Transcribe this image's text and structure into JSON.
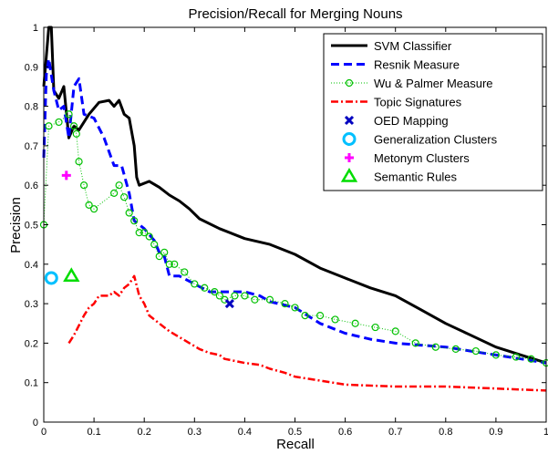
{
  "chart_data": {
    "type": "line",
    "title": "Precision/Recall for Merging Nouns",
    "xlabel": "Recall",
    "ylabel": "Precision",
    "xlim": [
      0,
      1
    ],
    "ylim": [
      0,
      1
    ],
    "xticks": [
      "0",
      "0.1",
      "0.2",
      "0.3",
      "0.4",
      "0.5",
      "0.6",
      "0.7",
      "0.8",
      "0.9",
      "1"
    ],
    "yticks": [
      "0",
      "0.1",
      "0.2",
      "0.3",
      "0.4",
      "0.5",
      "0.6",
      "0.7",
      "0.8",
      "0.9",
      "1"
    ],
    "grid": false,
    "legend_position": "top-right",
    "series": [
      {
        "name": "SVM Classifier",
        "style": "line-solid",
        "color": "#000000",
        "points": [
          [
            0.0,
            0.85
          ],
          [
            0.01,
            1.0
          ],
          [
            0.015,
            1.0
          ],
          [
            0.02,
            0.84
          ],
          [
            0.03,
            0.82
          ],
          [
            0.04,
            0.85
          ],
          [
            0.05,
            0.72
          ],
          [
            0.06,
            0.75
          ],
          [
            0.07,
            0.74
          ],
          [
            0.09,
            0.78
          ],
          [
            0.11,
            0.81
          ],
          [
            0.13,
            0.815
          ],
          [
            0.14,
            0.8
          ],
          [
            0.15,
            0.815
          ],
          [
            0.16,
            0.78
          ],
          [
            0.17,
            0.77
          ],
          [
            0.18,
            0.7
          ],
          [
            0.185,
            0.62
          ],
          [
            0.19,
            0.6
          ],
          [
            0.21,
            0.61
          ],
          [
            0.23,
            0.595
          ],
          [
            0.25,
            0.575
          ],
          [
            0.27,
            0.56
          ],
          [
            0.29,
            0.54
          ],
          [
            0.31,
            0.515
          ],
          [
            0.35,
            0.49
          ],
          [
            0.4,
            0.465
          ],
          [
            0.45,
            0.45
          ],
          [
            0.5,
            0.425
          ],
          [
            0.55,
            0.39
          ],
          [
            0.6,
            0.365
          ],
          [
            0.65,
            0.34
          ],
          [
            0.7,
            0.32
          ],
          [
            0.75,
            0.285
          ],
          [
            0.8,
            0.25
          ],
          [
            0.85,
            0.22
          ],
          [
            0.9,
            0.19
          ],
          [
            0.95,
            0.17
          ],
          [
            1.0,
            0.15
          ]
        ]
      },
      {
        "name": "Resnik Measure",
        "style": "line-dashed",
        "color": "#0000ff",
        "points": [
          [
            0.0,
            0.67
          ],
          [
            0.005,
            0.88
          ],
          [
            0.01,
            0.92
          ],
          [
            0.02,
            0.84
          ],
          [
            0.03,
            0.79
          ],
          [
            0.04,
            0.8
          ],
          [
            0.05,
            0.72
          ],
          [
            0.06,
            0.85
          ],
          [
            0.07,
            0.87
          ],
          [
            0.08,
            0.78
          ],
          [
            0.1,
            0.77
          ],
          [
            0.12,
            0.72
          ],
          [
            0.14,
            0.65
          ],
          [
            0.155,
            0.65
          ],
          [
            0.17,
            0.58
          ],
          [
            0.18,
            0.51
          ],
          [
            0.2,
            0.49
          ],
          [
            0.22,
            0.46
          ],
          [
            0.23,
            0.43
          ],
          [
            0.24,
            0.42
          ],
          [
            0.25,
            0.37
          ],
          [
            0.27,
            0.37
          ],
          [
            0.3,
            0.35
          ],
          [
            0.33,
            0.33
          ],
          [
            0.35,
            0.33
          ],
          [
            0.4,
            0.33
          ],
          [
            0.43,
            0.32
          ],
          [
            0.45,
            0.305
          ],
          [
            0.5,
            0.29
          ],
          [
            0.55,
            0.25
          ],
          [
            0.6,
            0.225
          ],
          [
            0.65,
            0.21
          ],
          [
            0.7,
            0.2
          ],
          [
            0.75,
            0.195
          ],
          [
            0.8,
            0.19
          ],
          [
            0.85,
            0.18
          ],
          [
            0.9,
            0.17
          ],
          [
            0.95,
            0.16
          ],
          [
            1.0,
            0.15
          ]
        ]
      },
      {
        "name": "Wu & Palmer Measure",
        "style": "dotted-circle",
        "color": "#00c000",
        "points": [
          [
            0.0,
            0.5
          ],
          [
            0.01,
            0.75
          ],
          [
            0.03,
            0.76
          ],
          [
            0.05,
            0.78
          ],
          [
            0.06,
            0.75
          ],
          [
            0.065,
            0.73
          ],
          [
            0.07,
            0.66
          ],
          [
            0.08,
            0.6
          ],
          [
            0.09,
            0.55
          ],
          [
            0.1,
            0.54
          ],
          [
            0.14,
            0.58
          ],
          [
            0.15,
            0.6
          ],
          [
            0.16,
            0.57
          ],
          [
            0.17,
            0.53
          ],
          [
            0.18,
            0.51
          ],
          [
            0.19,
            0.48
          ],
          [
            0.2,
            0.48
          ],
          [
            0.21,
            0.47
          ],
          [
            0.22,
            0.45
          ],
          [
            0.23,
            0.42
          ],
          [
            0.24,
            0.43
          ],
          [
            0.25,
            0.4
          ],
          [
            0.26,
            0.4
          ],
          [
            0.28,
            0.38
          ],
          [
            0.3,
            0.35
          ],
          [
            0.32,
            0.34
          ],
          [
            0.34,
            0.33
          ],
          [
            0.35,
            0.32
          ],
          [
            0.36,
            0.31
          ],
          [
            0.38,
            0.32
          ],
          [
            0.4,
            0.32
          ],
          [
            0.42,
            0.31
          ],
          [
            0.45,
            0.31
          ],
          [
            0.48,
            0.3
          ],
          [
            0.5,
            0.29
          ],
          [
            0.52,
            0.27
          ],
          [
            0.55,
            0.27
          ],
          [
            0.58,
            0.26
          ],
          [
            0.62,
            0.25
          ],
          [
            0.66,
            0.24
          ],
          [
            0.7,
            0.23
          ],
          [
            0.74,
            0.2
          ],
          [
            0.78,
            0.19
          ],
          [
            0.82,
            0.185
          ],
          [
            0.86,
            0.18
          ],
          [
            0.9,
            0.17
          ],
          [
            0.94,
            0.165
          ],
          [
            0.97,
            0.16
          ],
          [
            1.0,
            0.15
          ]
        ]
      },
      {
        "name": "Topic Signatures",
        "style": "line-dashdot",
        "color": "#ff0000",
        "points": [
          [
            0.05,
            0.2
          ],
          [
            0.06,
            0.22
          ],
          [
            0.08,
            0.27
          ],
          [
            0.09,
            0.29
          ],
          [
            0.1,
            0.3
          ],
          [
            0.11,
            0.32
          ],
          [
            0.13,
            0.32
          ],
          [
            0.14,
            0.33
          ],
          [
            0.15,
            0.32
          ],
          [
            0.16,
            0.34
          ],
          [
            0.17,
            0.35
          ],
          [
            0.18,
            0.37
          ],
          [
            0.19,
            0.32
          ],
          [
            0.2,
            0.3
          ],
          [
            0.21,
            0.27
          ],
          [
            0.23,
            0.25
          ],
          [
            0.25,
            0.23
          ],
          [
            0.27,
            0.215
          ],
          [
            0.29,
            0.2
          ],
          [
            0.31,
            0.185
          ],
          [
            0.33,
            0.175
          ],
          [
            0.35,
            0.17
          ],
          [
            0.36,
            0.16
          ],
          [
            0.38,
            0.155
          ],
          [
            0.4,
            0.15
          ],
          [
            0.43,
            0.145
          ],
          [
            0.45,
            0.135
          ],
          [
            0.48,
            0.125
          ],
          [
            0.5,
            0.115
          ],
          [
            0.55,
            0.105
          ],
          [
            0.6,
            0.095
          ],
          [
            0.7,
            0.09
          ],
          [
            0.8,
            0.09
          ],
          [
            0.9,
            0.085
          ],
          [
            1.0,
            0.08
          ]
        ]
      },
      {
        "name": "OED Mapping",
        "style": "marker-x",
        "color": "#0000c0",
        "points": [
          [
            0.37,
            0.3
          ]
        ]
      },
      {
        "name": "Generalization Clusters",
        "style": "marker-circle",
        "color": "#00c0ff",
        "points": [
          [
            0.015,
            0.365
          ]
        ]
      },
      {
        "name": "Metonym Clusters",
        "style": "marker-plus",
        "color": "#ff00ff",
        "points": [
          [
            0.045,
            0.625
          ]
        ]
      },
      {
        "name": "Semantic Rules",
        "style": "marker-triangle",
        "color": "#00dd00",
        "points": [
          [
            0.055,
            0.37
          ]
        ]
      }
    ]
  }
}
